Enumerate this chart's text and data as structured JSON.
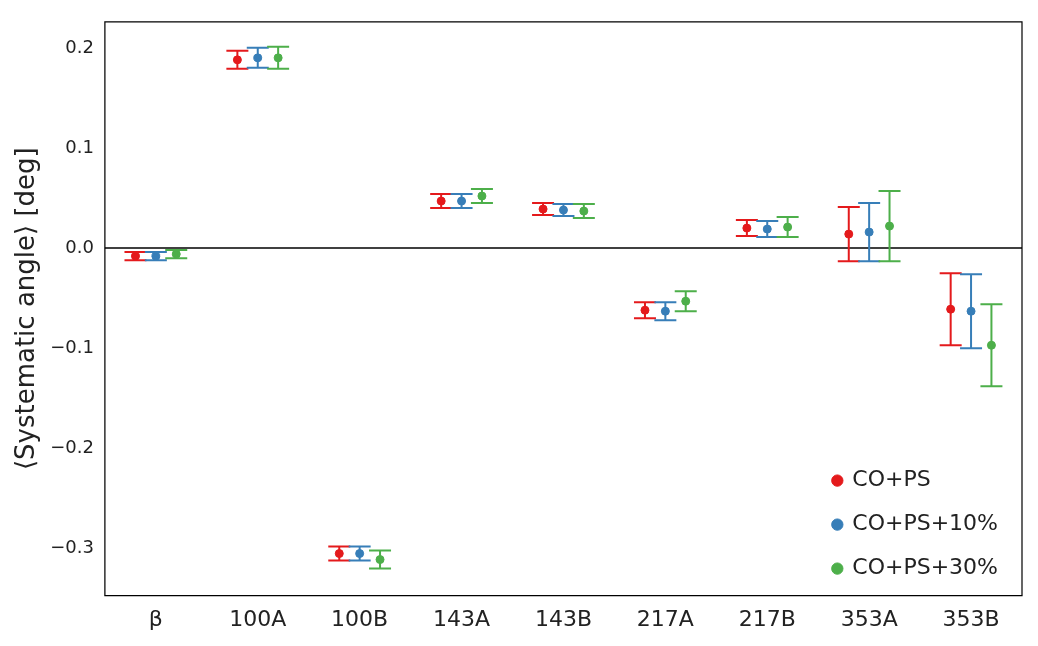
{
  "chart_data": {
    "type": "scatter",
    "ylabel": "⟨Systematic angle⟩ [deg]",
    "categories": [
      "β",
      "100A",
      "100B",
      "143A",
      "143B",
      "217A",
      "217B",
      "353A",
      "353B"
    ],
    "series": [
      {
        "name": "CO+PS",
        "color": "#e41a1c",
        "values": [
          -0.008,
          0.188,
          -0.305,
          0.047,
          0.039,
          -0.062,
          0.02,
          0.014,
          -0.061
        ],
        "errors": [
          0.004,
          0.009,
          0.007,
          0.007,
          0.006,
          0.008,
          0.008,
          0.027,
          0.036
        ]
      },
      {
        "name": "CO+PS+10%",
        "color": "#377eb8",
        "values": [
          -0.008,
          0.19,
          -0.305,
          0.047,
          0.038,
          -0.063,
          0.019,
          0.016,
          -0.063
        ],
        "errors": [
          0.004,
          0.01,
          0.007,
          0.007,
          0.006,
          0.009,
          0.008,
          0.029,
          0.037
        ]
      },
      {
        "name": "CO+PS+30%",
        "color": "#4daf4a",
        "values": [
          -0.006,
          0.19,
          -0.311,
          0.052,
          0.037,
          -0.053,
          0.021,
          0.022,
          -0.097
        ],
        "errors": [
          0.004,
          0.011,
          0.009,
          0.007,
          0.007,
          0.01,
          0.01,
          0.035,
          0.041
        ]
      }
    ],
    "ylim": [
      -0.347,
      0.226
    ],
    "yticks": [
      {
        "value": -0.3,
        "label": "−0.3"
      },
      {
        "value": -0.2,
        "label": "−0.2"
      },
      {
        "value": -0.1,
        "label": "−0.1"
      },
      {
        "value": 0,
        "label": "0.0"
      },
      0.1,
      0.2
    ],
    "ref_lines": [
      {
        "axis": "y",
        "value": 0,
        "color": "#000000"
      }
    ],
    "marker": "circle",
    "grid": false,
    "legend": "bottom right"
  }
}
